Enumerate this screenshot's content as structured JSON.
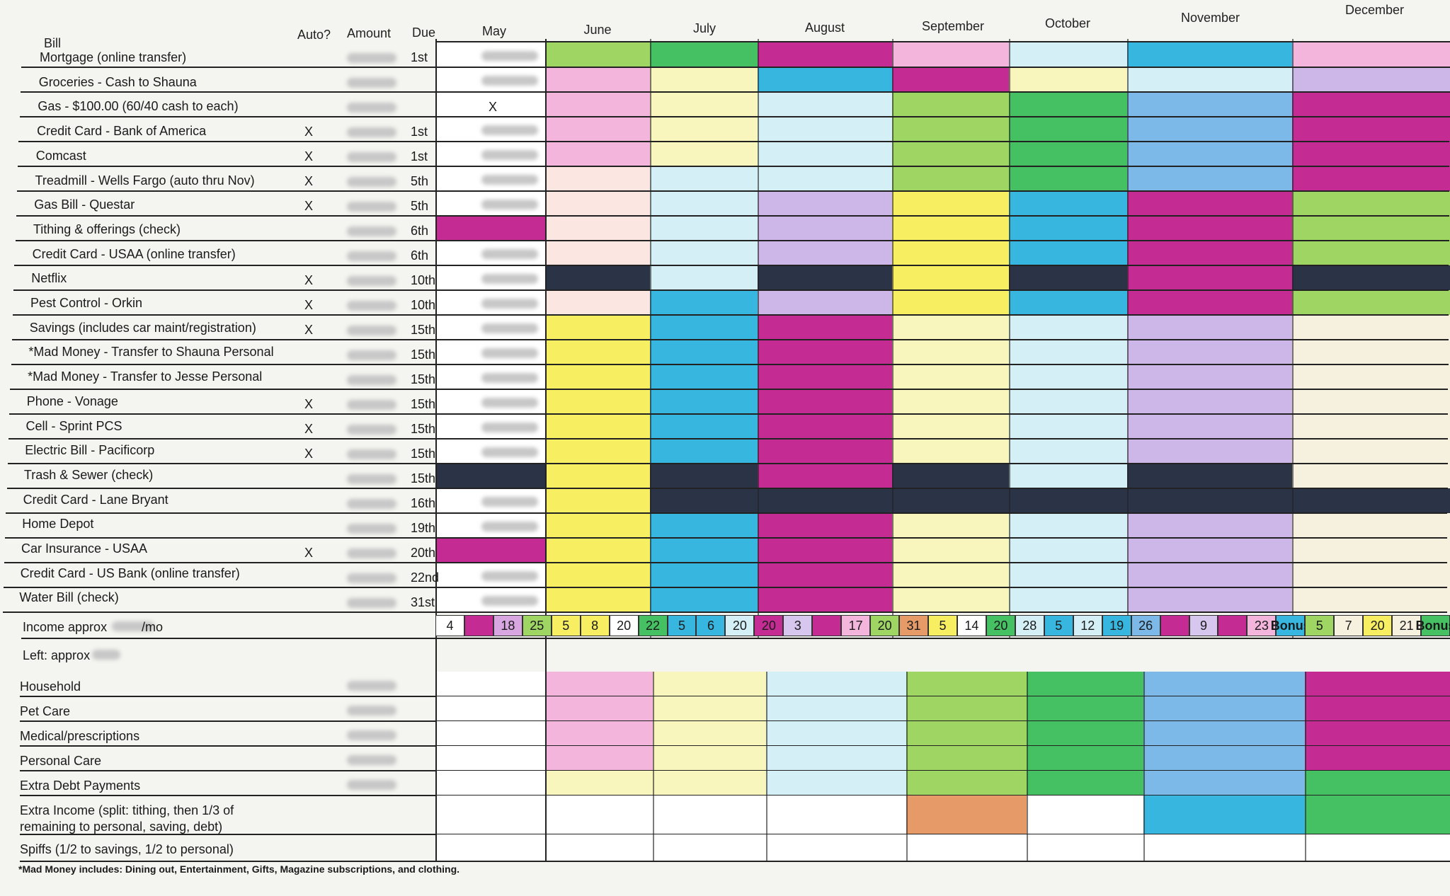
{
  "headers": {
    "bill": "Bill",
    "auto": "Auto?",
    "amount": "Amount",
    "due": "Due",
    "months": [
      "May",
      "June",
      "July",
      "August",
      "September",
      "October",
      "November",
      "December"
    ]
  },
  "bills": [
    {
      "name": "Mortgage (online transfer)",
      "auto": "",
      "due": "1st"
    },
    {
      "name": "Groceries - Cash to Shauna",
      "auto": "",
      "due": ""
    },
    {
      "name": "Gas - $100.00 (60/40 cash to each)",
      "auto": "",
      "due": ""
    },
    {
      "name": "Credit Card - Bank of America",
      "auto": "X",
      "due": "1st"
    },
    {
      "name": "Comcast",
      "auto": "X",
      "due": "1st"
    },
    {
      "name": "Treadmill - Wells Fargo (auto thru Nov)",
      "auto": "X",
      "due": "5th"
    },
    {
      "name": "Gas Bill - Questar",
      "auto": "X",
      "due": "5th"
    },
    {
      "name": "Tithing & offerings (check)",
      "auto": "",
      "due": "6th"
    },
    {
      "name": "Credit Card - USAA (online transfer)",
      "auto": "",
      "due": "6th"
    },
    {
      "name": "Netflix",
      "auto": "X",
      "due": "10th"
    },
    {
      "name": "Pest Control - Orkin",
      "auto": "X",
      "due": "10th"
    },
    {
      "name": "Savings (includes car maint/registration)",
      "auto": "X",
      "due": "15th"
    },
    {
      "name": "*Mad Money - Transfer to Shauna Personal",
      "auto": "",
      "due": "15th"
    },
    {
      "name": "*Mad Money - Transfer to Jesse Personal",
      "auto": "",
      "due": "15th"
    },
    {
      "name": "Phone - Vonage",
      "auto": "X",
      "due": "15th"
    },
    {
      "name": "Cell - Sprint PCS",
      "auto": "X",
      "due": "15th"
    },
    {
      "name": "Electric Bill - Pacificorp",
      "auto": "X",
      "due": "15th"
    },
    {
      "name": "Trash & Sewer (check)",
      "auto": "",
      "due": "15th"
    },
    {
      "name": "Credit Card - Lane Bryant",
      "auto": "",
      "due": "16th"
    },
    {
      "name": "Home Depot",
      "auto": "",
      "due": "19th"
    },
    {
      "name": "Car Insurance - USAA",
      "auto": "X",
      "due": "20th"
    },
    {
      "name": "Credit Card - US Bank (online transfer)",
      "auto": "",
      "due": "22nd"
    },
    {
      "name": "Water Bill (check)",
      "auto": "",
      "due": "31st"
    }
  ],
  "may_marks": {
    "gas_x": "X"
  },
  "income": {
    "label": "Income approx",
    "suffix": "/mo",
    "cells": [
      {
        "t": "4",
        "c": "#ffffff",
        "x": true
      },
      {
        "t": "",
        "c": "#c42c94"
      },
      {
        "t": "18",
        "c": "#d8a6e0",
        "x": true
      },
      {
        "t": "25",
        "c": "#9ed563"
      },
      {
        "t": "5",
        "c": "#f7ee62"
      },
      {
        "t": "8",
        "c": "#f7ee62"
      },
      {
        "t": "20",
        "c": "#ffffff"
      },
      {
        "t": "22",
        "c": "#45c063"
      },
      {
        "t": "5",
        "c": "#37b6df"
      },
      {
        "t": "6",
        "c": "#37b6df"
      },
      {
        "t": "20",
        "c": "#d4f0f6"
      },
      {
        "t": "20",
        "c": "#c42c94"
      },
      {
        "t": "3",
        "c": "#d7c7ef"
      },
      {
        "t": "",
        "c": "#c42c94"
      },
      {
        "t": "17",
        "c": "#f3b5dc"
      },
      {
        "t": "20",
        "c": "#9ed563"
      },
      {
        "t": "31",
        "c": "#e59a68"
      },
      {
        "t": "5",
        "c": "#f7ee62"
      },
      {
        "t": "14",
        "c": "#ffffff"
      },
      {
        "t": "20",
        "c": "#45c063"
      },
      {
        "t": "28",
        "c": "#d4f0f6"
      },
      {
        "t": "5",
        "c": "#37b6df"
      },
      {
        "t": "12",
        "c": "#d4f0f6"
      },
      {
        "t": "19",
        "c": "#37b6df"
      },
      {
        "t": "26",
        "c": "#7cb9e8"
      },
      {
        "t": "",
        "c": "#c42c94"
      },
      {
        "t": "9",
        "c": "#d7c7ef"
      },
      {
        "t": "",
        "c": "#c42c94"
      },
      {
        "t": "23",
        "c": "#f3b5dc"
      },
      {
        "t": "Bonus",
        "c": "#37b6df"
      },
      {
        "t": "5",
        "c": "#9ed563"
      },
      {
        "t": "7",
        "c": "#f6f0df"
      },
      {
        "t": "20",
        "c": "#f7ee62"
      },
      {
        "t": "21",
        "c": "#f6f0df"
      },
      {
        "t": "Bonus",
        "c": "#45c063"
      }
    ]
  },
  "left_label": "Left: approx",
  "categories": [
    {
      "name": "Household"
    },
    {
      "name": "Pet Care"
    },
    {
      "name": "Medical/prescriptions"
    },
    {
      "name": "Personal Care"
    },
    {
      "name": "Extra Debt Payments"
    },
    {
      "name": "Extra Income (split: tithing, then 1/3 of\nremaining to personal, saving, debt)"
    },
    {
      "name": "Spiffs (1/2 to savings, 1/2 to personal)"
    }
  ],
  "footnote": "*Mad Money includes: Dining out, Entertainment, Gifts, Magazine subscriptions, and clothing.",
  "colors": {
    "pink": "#f3b5dc",
    "yellow": "#f7ee62",
    "paleyellow": "#f9f6bd",
    "lightblue": "#d4f0f6",
    "blue": "#37b6df",
    "green": "#9ed563",
    "darkgreen": "#45c063",
    "magenta": "#c42c94",
    "lavender": "#c0aee8",
    "navy": "#2b3347",
    "orange": "#e59a68",
    "peach": "#fbe6e1",
    "cream": "#f6f0df",
    "skyblue": "#7cb9e8",
    "lilac": "#cdb6e8"
  }
}
